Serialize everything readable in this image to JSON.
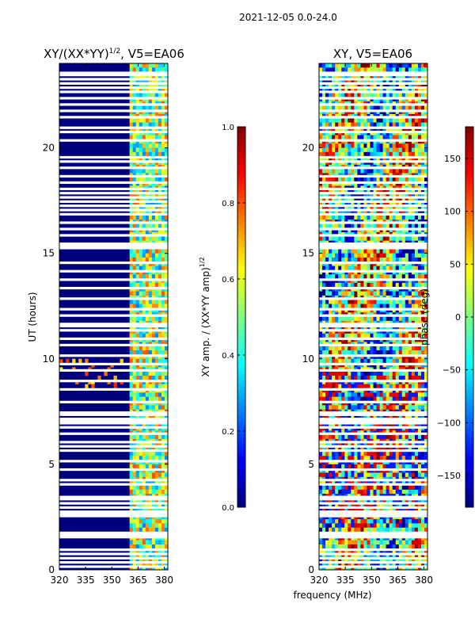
{
  "figure_title": "2021-12-05 0.0-24.0",
  "xlabel_shared": "frequency (MHz)",
  "colors": {
    "jet": [
      "#00007f",
      "#0000ff",
      "#007fff",
      "#00ffff",
      "#7fff7f",
      "#ffff00",
      "#ff7f00",
      "#ff0000",
      "#7f0000"
    ],
    "background": "#ffffff",
    "axis": "#000000"
  },
  "chart_data": [
    {
      "type": "heatmap",
      "title_main": "XY/(XX*YY)",
      "title_sup": "1/2",
      "title_rest": ", V5=EA06",
      "ylabel": "UT (hours)",
      "xlabel": "",
      "x_ticks": [
        "320",
        "335",
        "350",
        "365",
        "380"
      ],
      "x_tick_values": [
        320,
        335,
        350,
        365,
        380
      ],
      "y_ticks": [
        "0",
        "5",
        "10",
        "15",
        "20"
      ],
      "y_tick_values": [
        0,
        5,
        10,
        15,
        20
      ],
      "xlim": [
        320,
        382
      ],
      "ylim": [
        0,
        24
      ],
      "signal_band_mhz": [
        360,
        382
      ],
      "colorbar": {
        "label_main": "XY amp. / (XX*YY amp)",
        "label_sup": "1/2",
        "ticks": [
          "0.0",
          "0.2",
          "0.4",
          "0.6",
          "0.8",
          "1.0"
        ],
        "tick_values": [
          0.0,
          0.2,
          0.4,
          0.6,
          0.8,
          1.0
        ],
        "range": [
          0.0,
          1.0
        ]
      },
      "flagged_hours": [
        0.15,
        0.35,
        0.55,
        0.75,
        0.95,
        1.55,
        1.65,
        1.75,
        2.55,
        2.65,
        2.75,
        2.95,
        3.15,
        3.35,
        3.45,
        4.05,
        4.25,
        4.75,
        5.15,
        5.65,
        5.85,
        6.05,
        6.45,
        6.75,
        6.95,
        7.05,
        7.15,
        7.35,
        7.45,
        7.95,
        8.55,
        8.95,
        9.45,
        9.75,
        10.15,
        10.65,
        10.95,
        11.35,
        11.55,
        11.65,
        12.05,
        12.35,
        12.85,
        13.35,
        13.75,
        14.15,
        14.55,
        15.25,
        15.35,
        15.45,
        15.85,
        16.15,
        16.45,
        16.85,
        17.05,
        17.25,
        17.45,
        17.65,
        17.85,
        18.05,
        18.35,
        18.65,
        19.05,
        19.35,
        19.55,
        20.35,
        20.75,
        20.95,
        21.45,
        21.75,
        22.05,
        22.35,
        22.65,
        22.85,
        23.05,
        23.25,
        23.45,
        23.55
      ]
    },
    {
      "type": "heatmap",
      "title_main": "XY, V5=EA06",
      "ylabel": "",
      "xlabel": "frequency (MHz)",
      "x_ticks": [
        "320",
        "335",
        "350",
        "365",
        "380"
      ],
      "x_tick_values": [
        320,
        335,
        350,
        365,
        380
      ],
      "y_ticks": [
        "0",
        "5",
        "10",
        "15",
        "20"
      ],
      "y_tick_values": [
        0,
        5,
        10,
        15,
        20
      ],
      "xlim": [
        320,
        382
      ],
      "ylim": [
        0,
        24
      ],
      "colorbar": {
        "label_main": "phase (deg)",
        "ticks": [
          "−150",
          "−100",
          "−50",
          "0",
          "50",
          "100",
          "150"
        ],
        "tick_values": [
          -150,
          -100,
          -50,
          0,
          50,
          100,
          150
        ],
        "range": [
          -180,
          180
        ]
      },
      "flagged_hours": [
        0.15,
        0.35,
        0.55,
        0.75,
        0.95,
        1.55,
        1.65,
        1.75,
        2.55,
        2.65,
        2.75,
        2.95,
        3.15,
        3.35,
        3.45,
        4.05,
        4.25,
        4.75,
        5.15,
        5.65,
        5.85,
        6.05,
        6.45,
        6.75,
        6.95,
        7.05,
        7.15,
        7.35,
        7.45,
        7.95,
        8.55,
        8.95,
        9.45,
        9.75,
        10.15,
        10.65,
        10.95,
        11.35,
        11.55,
        11.65,
        12.05,
        12.35,
        12.85,
        13.35,
        13.75,
        14.15,
        14.55,
        15.25,
        15.35,
        15.45,
        15.85,
        16.15,
        16.45,
        16.85,
        17.05,
        17.25,
        17.45,
        17.65,
        17.85,
        18.05,
        18.35,
        18.65,
        19.05,
        19.35,
        19.55,
        20.35,
        20.75,
        20.95,
        21.45,
        21.75,
        22.05,
        22.35,
        22.65,
        22.85,
        23.05,
        23.25,
        23.45,
        23.55
      ]
    }
  ]
}
